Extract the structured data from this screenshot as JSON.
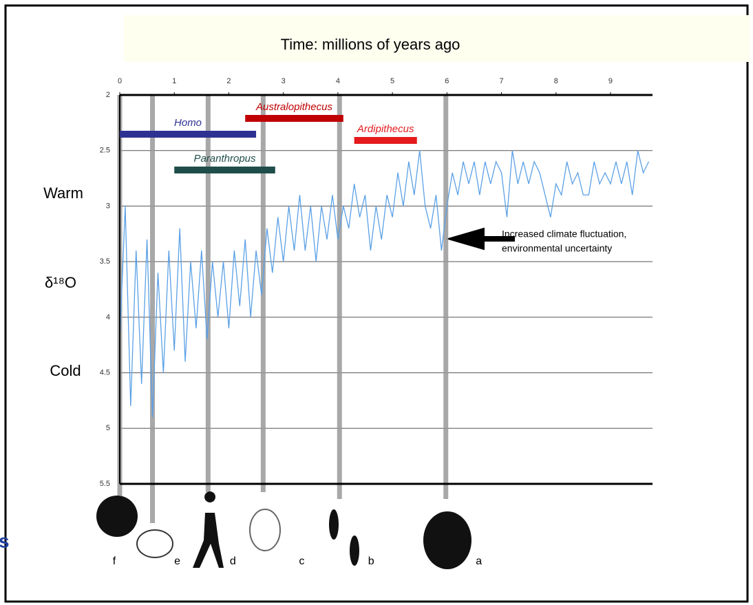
{
  "chart_data": {
    "type": "line",
    "title": "Time:  millions of years ago",
    "side_labels": [
      "Warm",
      "δ¹⁸O",
      "Cold"
    ],
    "fragment": "s",
    "xlim": [
      0,
      9.77
    ],
    "xticks": [
      0,
      1,
      2,
      3,
      4,
      5,
      6,
      7,
      8,
      9
    ],
    "ylim": [
      2,
      5.5
    ],
    "yticks": [
      2,
      2.5,
      3,
      3.5,
      4,
      4.5,
      5,
      5.5
    ],
    "y_inverted": true,
    "grid": true,
    "x": [
      0,
      0.1,
      0.2,
      0.3,
      0.4,
      0.5,
      0.6,
      0.7,
      0.8,
      0.9,
      1,
      1.1,
      1.2,
      1.3,
      1.4,
      1.5,
      1.6,
      1.7,
      1.8,
      1.9,
      2,
      2.1,
      2.2,
      2.3,
      2.4,
      2.5,
      2.6,
      2.7,
      2.8,
      2.9,
      3,
      3.1,
      3.2,
      3.3,
      3.4,
      3.5,
      3.6,
      3.7,
      3.8,
      3.9,
      4,
      4.1,
      4.2,
      4.3,
      4.4,
      4.5,
      4.6,
      4.7,
      4.8,
      4.9,
      5,
      5.1,
      5.2,
      5.3,
      5.4,
      5.5,
      5.6,
      5.7,
      5.8,
      5.9,
      6,
      6.1,
      6.2,
      6.3,
      6.4,
      6.5,
      6.6,
      6.7,
      6.8,
      6.9,
      7,
      7.1,
      7.2,
      7.3,
      7.4,
      7.5,
      7.6,
      7.7,
      7.8,
      7.9,
      8,
      8.1,
      8.2,
      8.3,
      8.4,
      8.5,
      8.6,
      8.7,
      8.8,
      8.9,
      9,
      9.1,
      9.2,
      9.3,
      9.4,
      9.5,
      9.6,
      9.7
    ],
    "series": [
      {
        "color": "#5aa0e6",
        "values": [
          4.2,
          3.0,
          4.8,
          3.4,
          4.6,
          3.3,
          4.9,
          3.6,
          4.5,
          3.4,
          4.3,
          3.2,
          4.4,
          3.5,
          4.1,
          3.4,
          4.2,
          3.5,
          4.0,
          3.5,
          4.1,
          3.4,
          3.9,
          3.3,
          4.0,
          3.4,
          3.8,
          3.2,
          3.6,
          3.1,
          3.5,
          3.0,
          3.4,
          2.9,
          3.4,
          3.0,
          3.5,
          3.0,
          3.3,
          2.9,
          3.3,
          3.0,
          3.2,
          2.8,
          3.1,
          2.9,
          3.4,
          3.0,
          3.3,
          2.9,
          3.1,
          2.7,
          3.0,
          2.6,
          2.9,
          2.5,
          3.0,
          3.2,
          2.9,
          3.4,
          3.0,
          2.7,
          2.9,
          2.6,
          2.8,
          2.6,
          2.9,
          2.6,
          2.8,
          2.6,
          2.7,
          3.1,
          2.5,
          2.8,
          2.6,
          2.8,
          2.6,
          2.7,
          2.9,
          3.1,
          2.8,
          2.9,
          2.6,
          2.8,
          2.7,
          2.9,
          2.9,
          2.6,
          2.8,
          2.7,
          2.8,
          2.6,
          2.8,
          2.6,
          2.9,
          2.5,
          2.7,
          2.6
        ]
      }
    ],
    "ranges": [
      {
        "name": "Australopithecus",
        "start": 2.3,
        "end": 4.1,
        "color": "#c00000"
      },
      {
        "name": "Homo",
        "start": 0,
        "end": 2.5,
        "color": "#2e3192"
      },
      {
        "name": "Ardipithecus",
        "start": 4.3,
        "end": 5.45,
        "color": "#e41a1c"
      },
      {
        "name": "Paranthropus",
        "start": 1.0,
        "end": 2.85,
        "color": "#1f4e4a"
      }
    ],
    "events": [
      {
        "x": 0,
        "label": "f"
      },
      {
        "x": 0.6,
        "label": "e"
      },
      {
        "x": 1.62,
        "label": "d"
      },
      {
        "x": 2.63,
        "label": "c"
      },
      {
        "x": 4.03,
        "label": "b"
      },
      {
        "x": 5.98,
        "label": "a"
      }
    ],
    "annotation": [
      "Increased climate fluctuation,",
      "environmental uncertainty"
    ]
  }
}
